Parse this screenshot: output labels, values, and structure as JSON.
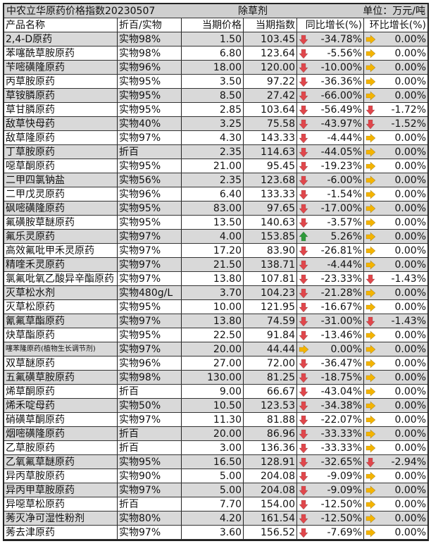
{
  "title": "中农立华原药价格指数20230507",
  "category": "除草剂",
  "unit": "单位：万元/吨",
  "headers": [
    "产品名称",
    "折百/实物",
    "当期价格",
    "当期指数",
    "同比增长(%)",
    "环比增长(%)"
  ],
  "colors": {
    "down": "#e0474c",
    "up": "#2e9a3a",
    "flat": "#f4b400",
    "row_gray": "#d9d9d9"
  },
  "rows": [
    {
      "name": "2,4-D原药",
      "spec": "实物98%",
      "price": "1.50",
      "index": "103.45",
      "yoy_dir": "down",
      "yoy": "-34.78%",
      "mom_dir": "flat",
      "mom": "0.00%"
    },
    {
      "name": "苯噻酰草胺原药",
      "spec": "实物98%",
      "price": "6.80",
      "index": "123.64",
      "yoy_dir": "down",
      "yoy": "-5.56%",
      "mom_dir": "flat",
      "mom": "0.00%"
    },
    {
      "name": "苄嘧磺隆原药",
      "spec": "实物96%",
      "price": "18.00",
      "index": "120.00",
      "yoy_dir": "down",
      "yoy": "-10.00%",
      "mom_dir": "flat",
      "mom": "0.00%"
    },
    {
      "name": "丙草胺原药",
      "spec": "实物95%",
      "price": "3.50",
      "index": "97.22",
      "yoy_dir": "down",
      "yoy": "-36.36%",
      "mom_dir": "flat",
      "mom": "0.00%"
    },
    {
      "name": "草铵膦原药",
      "spec": "实物95%",
      "price": "8.50",
      "index": "27.42",
      "yoy_dir": "down",
      "yoy": "-66.00%",
      "mom_dir": "flat",
      "mom": "0.00%"
    },
    {
      "name": "草甘膦原药",
      "spec": "实物95%",
      "price": "2.85",
      "index": "103.64",
      "yoy_dir": "down",
      "yoy": "-56.49%",
      "mom_dir": "down",
      "mom": "-1.72%"
    },
    {
      "name": "敌草快母药",
      "spec": "实物40%",
      "price": "3.25",
      "index": "75.58",
      "yoy_dir": "down",
      "yoy": "-43.97%",
      "mom_dir": "down",
      "mom": "-1.52%"
    },
    {
      "name": "敌草隆原药",
      "spec": "实物97%",
      "price": "4.30",
      "index": "143.33",
      "yoy_dir": "down",
      "yoy": "-4.44%",
      "mom_dir": "flat",
      "mom": "0.00%"
    },
    {
      "name": "丁草胺原药",
      "spec": "折百",
      "price": "2.35",
      "index": "114.63",
      "yoy_dir": "down",
      "yoy": "-44.05%",
      "mom_dir": "flat",
      "mom": "0.00%"
    },
    {
      "name": "噁草酮原药",
      "spec": "实物95%",
      "price": "21.00",
      "index": "95.45",
      "yoy_dir": "down",
      "yoy": "-19.23%",
      "mom_dir": "flat",
      "mom": "0.00%"
    },
    {
      "name": "二甲四氯钠盐",
      "spec": "实物56%",
      "price": "2.35",
      "index": "123.68",
      "yoy_dir": "down",
      "yoy": "-6.00%",
      "mom_dir": "flat",
      "mom": "0.00%"
    },
    {
      "name": "二甲戊灵原药",
      "spec": "实物96%",
      "price": "6.40",
      "index": "133.33",
      "yoy_dir": "down",
      "yoy": "-1.54%",
      "mom_dir": "flat",
      "mom": "0.00%"
    },
    {
      "name": "砜嘧磺隆原药",
      "spec": "实物95%",
      "price": "83.00",
      "index": "97.65",
      "yoy_dir": "down",
      "yoy": "-17.00%",
      "mom_dir": "flat",
      "mom": "0.00%"
    },
    {
      "name": "氟磺胺草醚原药",
      "spec": "实物95%",
      "price": "13.50",
      "index": "140.63",
      "yoy_dir": "down",
      "yoy": "-3.57%",
      "mom_dir": "flat",
      "mom": "0.00%"
    },
    {
      "name": "氟乐灵原药",
      "spec": "实物97%",
      "price": "4.00",
      "index": "153.85",
      "yoy_dir": "up",
      "yoy": "5.26%",
      "mom_dir": "flat",
      "mom": "0.00%"
    },
    {
      "name": "高效氟吡甲禾灵原药",
      "spec": "实物97%",
      "price": "17.20",
      "index": "83.90",
      "yoy_dir": "down",
      "yoy": "-26.81%",
      "mom_dir": "flat",
      "mom": "0.00%"
    },
    {
      "name": "精喹禾灵原药",
      "spec": "实物97%",
      "price": "21.50",
      "index": "138.71",
      "yoy_dir": "down",
      "yoy": "-4.44%",
      "mom_dir": "flat",
      "mom": "0.00%"
    },
    {
      "name": "氯氟吡氧乙酸异辛酯原药",
      "spec": "实物97%",
      "price": "13.80",
      "index": "107.81",
      "yoy_dir": "down",
      "yoy": "-23.33%",
      "mom_dir": "down",
      "mom": "-1.43%"
    },
    {
      "name": "灭草松水剂",
      "spec": "实物480g/L",
      "price": "3.70",
      "index": "104.23",
      "yoy_dir": "down",
      "yoy": "-21.28%",
      "mom_dir": "flat",
      "mom": "0.00%"
    },
    {
      "name": "灭草松原药",
      "spec": "实物95%",
      "price": "10.00",
      "index": "121.95",
      "yoy_dir": "down",
      "yoy": "-16.67%",
      "mom_dir": "flat",
      "mom": "0.00%"
    },
    {
      "name": "氰氟草酯原药",
      "spec": "实物97%",
      "price": "13.80",
      "index": "74.59",
      "yoy_dir": "down",
      "yoy": "-31.00%",
      "mom_dir": "down",
      "mom": "-1.43%"
    },
    {
      "name": "炔草酯原药",
      "spec": "实物95%",
      "price": "22.50",
      "index": "91.84",
      "yoy_dir": "down",
      "yoy": "-13.46%",
      "mom_dir": "flat",
      "mom": "0.00%"
    },
    {
      "name": "噻苯隆原药(植物生长调节剂)",
      "spec": "实物97%",
      "price": "20.00",
      "index": "44.44",
      "yoy_dir": "flat",
      "yoy": "0.00%",
      "mom_dir": "flat",
      "mom": "0.00%",
      "small": true
    },
    {
      "name": "双草醚原药",
      "spec": "实物96%",
      "price": "27.00",
      "index": "72.00",
      "yoy_dir": "down",
      "yoy": "-36.47%",
      "mom_dir": "flat",
      "mom": "0.00%"
    },
    {
      "name": "五氟磺草胺原药",
      "spec": "实物98%",
      "price": "130.00",
      "index": "81.25",
      "yoy_dir": "down",
      "yoy": "-18.75%",
      "mom_dir": "flat",
      "mom": "0.00%"
    },
    {
      "name": "烯草酮原药",
      "spec": "折百",
      "price": "9.00",
      "index": "66.67",
      "yoy_dir": "down",
      "yoy": "-43.04%",
      "mom_dir": "flat",
      "mom": "0.00%"
    },
    {
      "name": "烯禾啶母药",
      "spec": "实物50%",
      "price": "10.50",
      "index": "123.53",
      "yoy_dir": "down",
      "yoy": "-34.38%",
      "mom_dir": "flat",
      "mom": "0.00%"
    },
    {
      "name": "硝磺草酮原药",
      "spec": "实物97%",
      "price": "11.30",
      "index": "81.88",
      "yoy_dir": "down",
      "yoy": "-22.07%",
      "mom_dir": "flat",
      "mom": "0.00%"
    },
    {
      "name": "烟嘧磺隆原药",
      "spec": "折百",
      "price": "20.00",
      "index": "86.96",
      "yoy_dir": "down",
      "yoy": "-33.33%",
      "mom_dir": "flat",
      "mom": "0.00%"
    },
    {
      "name": "乙草胺原药",
      "spec": "折百",
      "price": "3.00",
      "index": "136.36",
      "yoy_dir": "down",
      "yoy": "-33.33%",
      "mom_dir": "flat",
      "mom": "0.00%"
    },
    {
      "name": "乙氧氟草醚原药",
      "spec": "实物95%",
      "price": "16.50",
      "index": "128.91",
      "yoy_dir": "down",
      "yoy": "-32.65%",
      "mom_dir": "down",
      "mom": "-2.94%"
    },
    {
      "name": "异丙草胺原药",
      "spec": "实物90%",
      "price": "5.00",
      "index": "204.08",
      "yoy_dir": "down",
      "yoy": "-9.09%",
      "mom_dir": "flat",
      "mom": "0.00%"
    },
    {
      "name": "异丙甲草胺原药",
      "spec": "实物97%",
      "price": "5.00",
      "index": "204.08",
      "yoy_dir": "down",
      "yoy": "-9.09%",
      "mom_dir": "flat",
      "mom": "0.00%"
    },
    {
      "name": "异噁草松原药",
      "spec": "折百",
      "price": "7.70",
      "index": "154.00",
      "yoy_dir": "down",
      "yoy": "-12.50%",
      "mom_dir": "flat",
      "mom": "0.00%"
    },
    {
      "name": "莠灭净可湿性粉剂",
      "spec": "实物80%",
      "price": "4.20",
      "index": "161.54",
      "yoy_dir": "down",
      "yoy": "-12.50%",
      "mom_dir": "flat",
      "mom": "0.00%"
    },
    {
      "name": "莠去津原药",
      "spec": "实物97%",
      "price": "3.60",
      "index": "156.52",
      "yoy_dir": "down",
      "yoy": "-7.69%",
      "mom_dir": "flat",
      "mom": "0.00%"
    }
  ]
}
